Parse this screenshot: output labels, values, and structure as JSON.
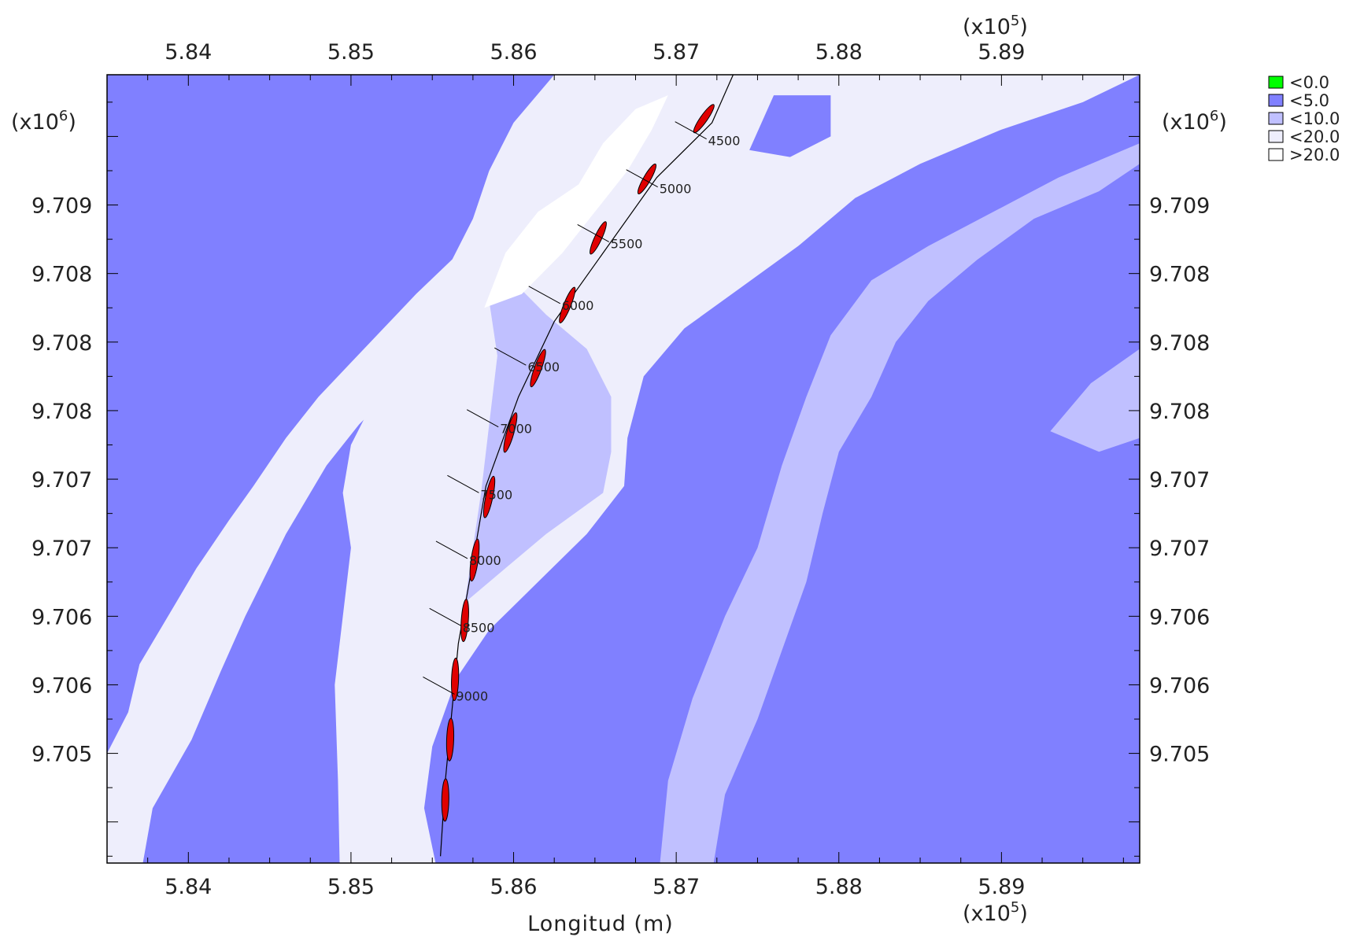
{
  "colors": {
    "zone_lt5": "#8080ff",
    "zone_lt10": "#c0c0ff",
    "zone_lt20": "#eeeefc",
    "zone_gt20": "#ffffff",
    "zone_lt0": "#00ff00",
    "vessel": "#e00000",
    "line": "#000000"
  },
  "chart_data": {
    "type": "contour",
    "xlabel": "Longitud (m)",
    "x_multiplier": "(x10",
    "x_exponent": "5",
    "y_multiplier": "(x10",
    "y_exponent": "6",
    "mult_close": ")",
    "xlim": [
      583.5,
      589.85
    ],
    "ylim": [
      9704.2,
      9709.95
    ],
    "x_ticks": [
      {
        "value": 584,
        "label": "5.84"
      },
      {
        "value": 585,
        "label": "5.85"
      },
      {
        "value": 586,
        "label": "5.86"
      },
      {
        "value": 587,
        "label": "5.87"
      },
      {
        "value": 588,
        "label": "5.88"
      },
      {
        "value": 589,
        "label": "5.89"
      }
    ],
    "y_ticks": [
      {
        "value": 9705,
        "label": "9.705"
      },
      {
        "value": 9705.5,
        "label": "9.706"
      },
      {
        "value": 9706,
        "label": "9.706"
      },
      {
        "value": 9706.5,
        "label": "9.707"
      },
      {
        "value": 9707,
        "label": "9.707"
      },
      {
        "value": 9707.5,
        "label": "9.708"
      },
      {
        "value": 9708,
        "label": "9.708"
      },
      {
        "value": 9708.5,
        "label": "9.708"
      },
      {
        "value": 9709,
        "label": "9.709"
      }
    ],
    "legend": [
      {
        "label": "<0.0",
        "color": "#00ff00"
      },
      {
        "label": "<5.0",
        "color": "#8080ff"
      },
      {
        "label": "<10.0",
        "color": "#c0c0ff"
      },
      {
        "label": "<20.0",
        "color": "#eeeefc"
      },
      {
        "label": ">20.0",
        "color": "#ffffff"
      }
    ],
    "track": [
      [
        585.55,
        9704.25
      ],
      [
        585.58,
        9704.8
      ],
      [
        585.62,
        9705.3
      ],
      [
        585.66,
        9705.8
      ],
      [
        585.75,
        9706.4
      ],
      [
        585.83,
        9706.95
      ],
      [
        586.03,
        9707.6
      ],
      [
        586.25,
        9708.15
      ],
      [
        586.55,
        9708.65
      ],
      [
        586.88,
        9709.2
      ],
      [
        587.22,
        9709.6
      ],
      [
        587.35,
        9709.95
      ]
    ],
    "chainages": [
      {
        "label": "4500",
        "x": 587.08,
        "y": 9709.55
      },
      {
        "label": "5000",
        "x": 586.78,
        "y": 9709.2
      },
      {
        "label": "5500",
        "x": 586.48,
        "y": 9708.8
      },
      {
        "label": "6000",
        "x": 586.18,
        "y": 9708.35
      },
      {
        "label": "6500",
        "x": 585.97,
        "y": 9707.9
      },
      {
        "label": "7000",
        "x": 585.8,
        "y": 9707.45
      },
      {
        "label": "7500",
        "x": 585.68,
        "y": 9706.97
      },
      {
        "label": "8000",
        "x": 585.61,
        "y": 9706.49
      },
      {
        "label": "8500",
        "x": 585.57,
        "y": 9706.0
      },
      {
        "label": "9000",
        "x": 585.53,
        "y": 9705.5
      }
    ],
    "vessels": [
      {
        "x": 587.17,
        "y": 9709.63,
        "len": 0.25,
        "ang": 55
      },
      {
        "x": 586.82,
        "y": 9709.19,
        "len": 0.25,
        "ang": 60
      },
      {
        "x": 586.52,
        "y": 9708.76,
        "len": 0.26,
        "ang": 65
      },
      {
        "x": 586.33,
        "y": 9708.27,
        "len": 0.28,
        "ang": 68
      },
      {
        "x": 586.15,
        "y": 9707.81,
        "len": 0.29,
        "ang": 70
      },
      {
        "x": 585.98,
        "y": 9707.34,
        "len": 0.3,
        "ang": 74
      },
      {
        "x": 585.85,
        "y": 9706.87,
        "len": 0.31,
        "ang": 78
      },
      {
        "x": 585.76,
        "y": 9706.41,
        "len": 0.31,
        "ang": 82
      },
      {
        "x": 585.7,
        "y": 9705.97,
        "len": 0.31,
        "ang": 86
      },
      {
        "x": 585.64,
        "y": 9705.54,
        "len": 0.31,
        "ang": 88
      },
      {
        "x": 585.61,
        "y": 9705.1,
        "len": 0.31,
        "ang": 88
      },
      {
        "x": 585.58,
        "y": 9704.66,
        "len": 0.31,
        "ang": 89
      }
    ],
    "contours": {
      "lt10": [
        [
          583.5,
          9704.2
        ],
        [
          583.63,
          9704.2
        ],
        [
          583.63,
          9704.7
        ],
        [
          583.8,
          9705.0
        ],
        [
          583.95,
          9705.35
        ],
        [
          584.05,
          9705.6
        ],
        [
          584.15,
          9706.05
        ],
        [
          584.42,
          9706.7
        ],
        [
          584.6,
          9707.15
        ],
        [
          584.85,
          9707.5
        ],
        [
          585.15,
          9707.85
        ],
        [
          585.35,
          9708.2
        ],
        [
          585.55,
          9708.5
        ],
        [
          585.85,
          9708.75
        ],
        [
          586.15,
          9709.05
        ],
        [
          586.5,
          9709.35
        ],
        [
          586.7,
          9709.65
        ],
        [
          586.75,
          9709.95
        ],
        [
          583.5,
          9709.95
        ]
      ],
      "lt20": [
        [
          583.5,
          9704.2
        ],
        [
          583.72,
          9704.2
        ],
        [
          583.78,
          9704.6
        ],
        [
          584.02,
          9705.1
        ],
        [
          584.2,
          9705.6
        ],
        [
          584.35,
          9706.0
        ],
        [
          584.6,
          9706.6
        ],
        [
          584.85,
          9707.1
        ],
        [
          585.05,
          9707.4
        ],
        [
          585.35,
          9707.75
        ],
        [
          585.55,
          9708.05
        ],
        [
          585.75,
          9708.45
        ],
        [
          586.1,
          9708.75
        ],
        [
          586.4,
          9709.15
        ],
        [
          586.55,
          9709.5
        ],
        [
          586.75,
          9709.8
        ],
        [
          586.85,
          9709.95
        ],
        [
          583.5,
          9709.95
        ]
      ],
      "lt5_left": [
        [
          583.5,
          9705.0
        ],
        [
          583.63,
          9705.3
        ],
        [
          583.7,
          9705.65
        ],
        [
          583.85,
          9705.95
        ],
        [
          584.05,
          9706.35
        ],
        [
          584.25,
          9706.7
        ],
        [
          584.4,
          9706.95
        ],
        [
          584.6,
          9707.3
        ],
        [
          584.8,
          9707.6
        ],
        [
          585.0,
          9707.85
        ],
        [
          585.2,
          9708.1
        ],
        [
          585.4,
          9708.35
        ],
        [
          585.62,
          9708.6
        ],
        [
          585.85,
          9708.85
        ],
        [
          586.08,
          9709.1
        ],
        [
          586.3,
          9709.35
        ],
        [
          586.5,
          9709.6
        ],
        [
          586.6,
          9709.95
        ],
        [
          583.5,
          9709.95
        ]
      ],
      "center_band": [
        [
          584.93,
          9704.2
        ],
        [
          585.52,
          9704.2
        ],
        [
          585.45,
          9704.6
        ],
        [
          585.5,
          9705.05
        ],
        [
          585.65,
          9705.55
        ],
        [
          585.85,
          9705.9
        ],
        [
          586.15,
          9706.25
        ],
        [
          586.45,
          9706.6
        ],
        [
          586.68,
          9706.95
        ],
        [
          586.7,
          9707.3
        ],
        [
          586.8,
          9707.75
        ],
        [
          587.05,
          9708.1
        ],
        [
          587.4,
          9708.4
        ],
        [
          587.75,
          9708.7
        ],
        [
          588.1,
          9709.05
        ],
        [
          588.5,
          9709.3
        ],
        [
          589.0,
          9709.55
        ],
        [
          589.5,
          9709.75
        ],
        [
          589.85,
          9709.95
        ],
        [
          586.25,
          9709.95
        ],
        [
          586.0,
          9709.6
        ],
        [
          585.85,
          9709.25
        ],
        [
          585.75,
          9708.9
        ],
        [
          585.6,
          9708.55
        ],
        [
          585.55,
          9708.2
        ],
        [
          585.35,
          9707.85
        ],
        [
          585.15,
          9707.6
        ],
        [
          585.0,
          9707.25
        ],
        [
          584.95,
          9706.9
        ],
        [
          585.0,
          9706.5
        ],
        [
          584.95,
          9706.0
        ],
        [
          584.9,
          9705.5
        ],
        [
          584.92,
          9704.8
        ]
      ],
      "lt10_right": [
        [
          586.9,
          9704.2
        ],
        [
          589.85,
          9704.2
        ],
        [
          589.85,
          9709.45
        ],
        [
          589.35,
          9709.2
        ],
        [
          588.95,
          9708.95
        ],
        [
          588.55,
          9708.7
        ],
        [
          588.2,
          9708.45
        ],
        [
          587.95,
          9708.05
        ],
        [
          587.8,
          9707.6
        ],
        [
          587.65,
          9707.1
        ],
        [
          587.5,
          9706.5
        ],
        [
          587.3,
          9706.0
        ],
        [
          587.1,
          9705.4
        ],
        [
          586.95,
          9704.8
        ]
      ],
      "lt20_left_interior": [
        [
          585.7,
          9706.1
        ],
        [
          585.95,
          9706.35
        ],
        [
          586.2,
          9706.6
        ],
        [
          586.55,
          9706.9
        ],
        [
          586.6,
          9707.2
        ],
        [
          586.6,
          9707.6
        ],
        [
          586.45,
          9707.95
        ],
        [
          586.2,
          9708.2
        ],
        [
          585.95,
          9708.5
        ],
        [
          585.85,
          9708.3
        ],
        [
          585.9,
          9707.9
        ],
        [
          585.85,
          9707.4
        ],
        [
          585.8,
          9706.9
        ],
        [
          585.75,
          9706.5
        ]
      ],
      "lt5_right": [
        [
          587.23,
          9704.2
        ],
        [
          589.85,
          9704.2
        ],
        [
          589.85,
          9709.3
        ],
        [
          589.6,
          9709.1
        ],
        [
          589.2,
          9708.9
        ],
        [
          588.85,
          9708.6
        ],
        [
          588.55,
          9708.3
        ],
        [
          588.35,
          9708.0
        ],
        [
          588.2,
          9707.6
        ],
        [
          588.0,
          9707.2
        ],
        [
          587.9,
          9706.75
        ],
        [
          587.8,
          9706.25
        ],
        [
          587.65,
          9705.75
        ],
        [
          587.5,
          9705.25
        ],
        [
          587.3,
          9704.7
        ]
      ],
      "lt10_right_blob": [
        [
          589.3,
          9707.35
        ],
        [
          589.55,
          9707.7
        ],
        [
          589.85,
          9707.95
        ],
        [
          589.85,
          9707.3
        ],
        [
          589.6,
          9707.2
        ]
      ],
      "lt5_top_blob": [
        [
          587.45,
          9709.4
        ],
        [
          587.6,
          9709.8
        ],
        [
          587.95,
          9709.8
        ],
        [
          587.95,
          9709.5
        ],
        [
          587.7,
          9709.35
        ]
      ]
    }
  }
}
